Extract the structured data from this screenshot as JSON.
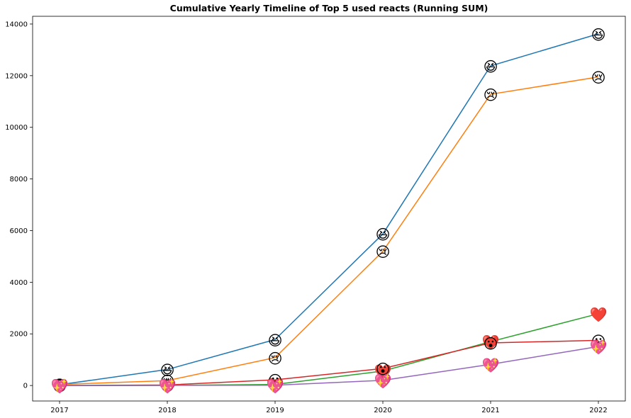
{
  "chart_data": {
    "type": "line",
    "title": "Cumulative Yearly Timeline of Top 5 used reacts (Running SUM)",
    "xlabel": "",
    "ylabel": "",
    "categories": [
      "2017",
      "2018",
      "2019",
      "2020",
      "2021",
      "2022"
    ],
    "ylim": [
      -600,
      14300
    ],
    "yticks": [
      0,
      2000,
      4000,
      6000,
      8000,
      10000,
      12000,
      14000
    ],
    "grid": false,
    "series": [
      {
        "marker": "laughing-face",
        "glyph": "😆",
        "color": "#1f77b4",
        "values": [
          30,
          620,
          1780,
          5870,
          12380,
          13620
        ]
      },
      {
        "marker": "crying-face",
        "glyph": "😢",
        "color": "#ff7f0e",
        "values": [
          40,
          190,
          1080,
          5200,
          11280,
          11950
        ]
      },
      {
        "marker": "heart",
        "glyph": "❤️",
        "color": "#2ca02c",
        "values": [
          0,
          5,
          40,
          560,
          1700,
          2780
        ]
      },
      {
        "marker": "surprised-face",
        "glyph": "😮",
        "color": "#d62728",
        "values": [
          0,
          20,
          220,
          660,
          1650,
          1750
        ]
      },
      {
        "marker": "sparkling-heart",
        "glyph": "💖",
        "color": "#9467bd",
        "values": [
          0,
          5,
          10,
          200,
          820,
          1510
        ]
      }
    ]
  }
}
